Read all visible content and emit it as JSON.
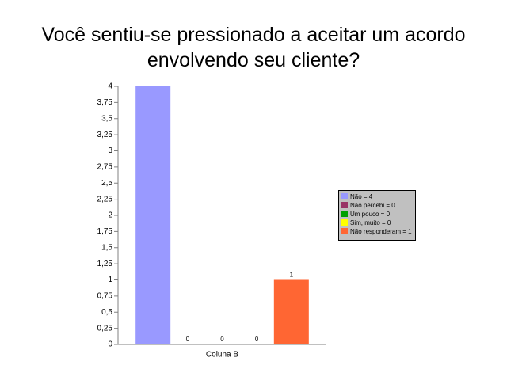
{
  "chart_data": {
    "type": "bar",
    "title": "Você sentiu-se pressionado a aceitar um acordo envolvendo seu cliente?",
    "categories": [
      "Coluna B"
    ],
    "series": [
      {
        "name": "Não = 4",
        "color": "#9999ff",
        "values": [
          4
        ]
      },
      {
        "name": "Não percebi = 0",
        "color": "#993366",
        "values": [
          0
        ]
      },
      {
        "name": "Um pouco = 0",
        "color": "#00a000",
        "values": [
          0
        ]
      },
      {
        "name": "Sim, muito = 0",
        "color": "#ffff00",
        "values": [
          0
        ]
      },
      {
        "name": "Não responderam = 1",
        "color": "#ff6633",
        "values": [
          1
        ]
      }
    ],
    "ylim": [
      0,
      4
    ],
    "yticks": [
      0,
      {
        "value": 0.25,
        "label": "0,25"
      },
      {
        "value": 0.5,
        "label": "0,5"
      },
      {
        "value": 0.75,
        "label": "0,75"
      },
      1,
      {
        "value": 1.25,
        "label": "1,25"
      },
      {
        "value": 1.5,
        "label": "1,5"
      },
      {
        "value": 1.75,
        "label": "1,75"
      },
      2,
      {
        "value": 2.25,
        "label": "2,25"
      },
      {
        "value": 2.5,
        "label": "2,5"
      },
      {
        "value": 2.75,
        "label": "2,75"
      },
      3,
      {
        "value": 3.25,
        "label": "3,25"
      },
      {
        "value": 3.5,
        "label": "3,5"
      },
      {
        "value": 3.75,
        "label": "3,75"
      },
      4
    ],
    "legend": "right"
  }
}
